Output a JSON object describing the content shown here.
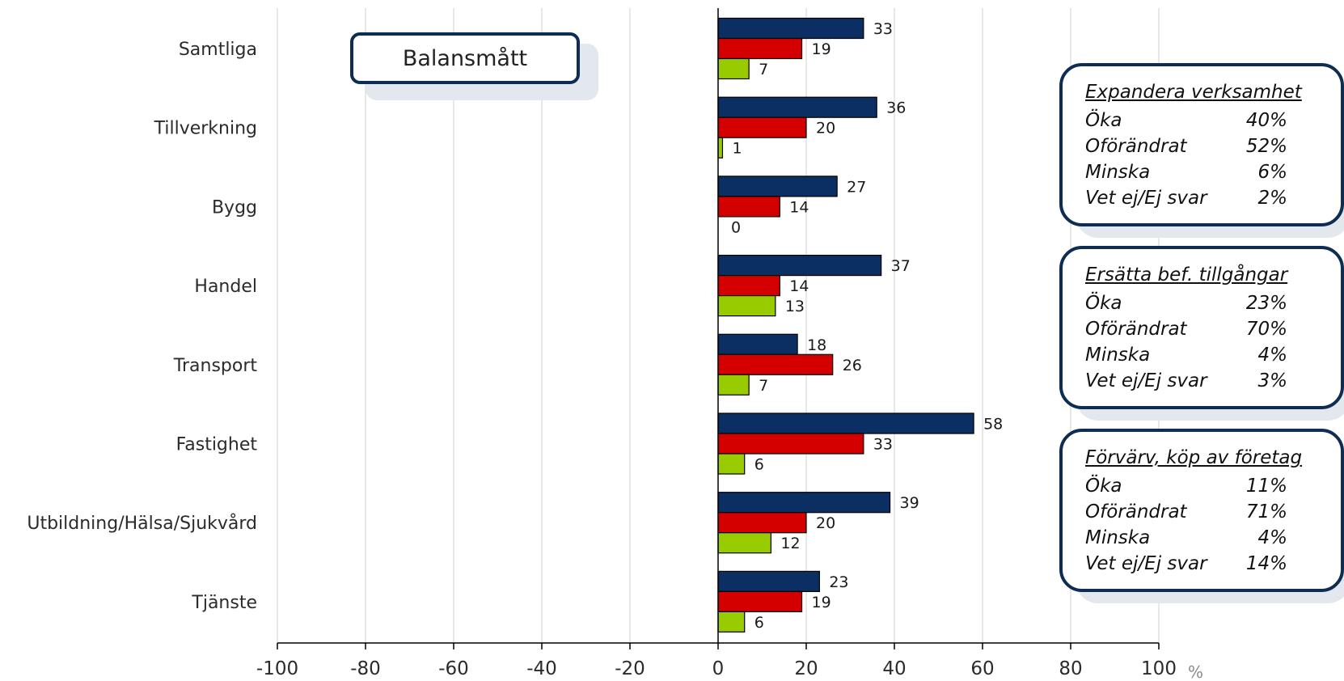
{
  "chart_data": {
    "type": "bar",
    "orientation": "horizontal",
    "categories": [
      "Samtliga",
      "Tillverkning",
      "Bygg",
      "Handel",
      "Transport",
      "Fastighet",
      "Utbildning/Hälsa/Sjukvård",
      "Tjänste"
    ],
    "series": [
      {
        "color": "#0b2f63",
        "values": [
          33,
          36,
          27,
          37,
          18,
          58,
          39,
          23
        ]
      },
      {
        "color": "#d40000",
        "values": [
          19,
          20,
          14,
          14,
          26,
          33,
          20,
          19
        ]
      },
      {
        "color": "#99cc00",
        "values": [
          7,
          1,
          0,
          13,
          7,
          6,
          12,
          6
        ]
      }
    ],
    "xlim": [
      -100,
      100
    ],
    "xticks": [
      -100,
      -80,
      -60,
      -40,
      -20,
      0,
      20,
      40,
      60,
      80,
      100
    ],
    "x_unit": "%",
    "grid": "vertical",
    "legend": "none"
  },
  "badge": {
    "label": "Balansmått"
  },
  "panels": [
    {
      "title": "Expandera verksamhet",
      "rows": [
        {
          "label": "Öka",
          "value": "40%"
        },
        {
          "label": "Oförändrat",
          "value": "52%"
        },
        {
          "label": "Minska",
          "value": "6%"
        },
        {
          "label": "Vet ej/Ej svar",
          "value": "2%"
        }
      ]
    },
    {
      "title": "Ersätta bef. tillgångar",
      "rows": [
        {
          "label": "Öka",
          "value": "23%"
        },
        {
          "label": "Oförändrat",
          "value": "70%"
        },
        {
          "label": "Minska",
          "value": "4%"
        },
        {
          "label": "Vet ej/Ej svar",
          "value": "3%"
        }
      ]
    },
    {
      "title": "Förvärv, köp av företag",
      "rows": [
        {
          "label": "Öka",
          "value": "11%"
        },
        {
          "label": "Oförändrat",
          "value": "71%"
        },
        {
          "label": "Minska",
          "value": "4%"
        },
        {
          "label": "Vet ej/Ej svar",
          "value": "14%"
        }
      ]
    }
  ],
  "colors": {
    "panel_border": "#0f2d52",
    "grid": "#d0d0d0",
    "axis": "#000000"
  }
}
